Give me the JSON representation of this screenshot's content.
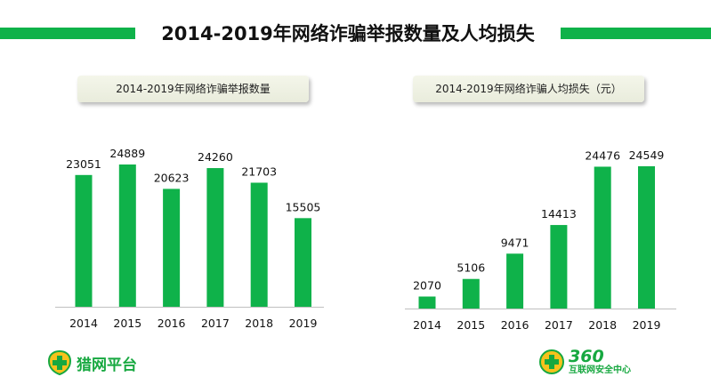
{
  "header": {
    "title": "2014-2019年网络诈骗举报数量及人均损失"
  },
  "colors": {
    "accent": "#0fb24a",
    "bar": "#0fb24a",
    "axis": "#bfbfbf"
  },
  "chart_data": [
    {
      "type": "bar",
      "title": "2014-2019年网络诈骗举报数量",
      "categories": [
        "2014",
        "2015",
        "2016",
        "2017",
        "2018",
        "2019"
      ],
      "values": [
        23051,
        24889,
        20623,
        24260,
        21703,
        15505
      ],
      "xlabel": "",
      "ylabel": "",
      "ylim": [
        0,
        27500
      ],
      "grid": false,
      "data_labels": true
    },
    {
      "type": "bar",
      "title": "2014-2019年网络诈骗人均损失（元）",
      "categories": [
        "2014",
        "2015",
        "2016",
        "2017",
        "2018",
        "2019"
      ],
      "values": [
        2070,
        5106,
        9471,
        14413,
        24476,
        24549
      ],
      "xlabel": "",
      "ylabel": "",
      "ylim": [
        0,
        27500
      ],
      "grid": false,
      "data_labels": true
    }
  ],
  "logos": {
    "left_name": "猎网平台",
    "right_brand": "360",
    "right_name": "互联网安全中心",
    "left_icon": "plus-shield-icon",
    "right_icon": "plus-shield-icon"
  }
}
